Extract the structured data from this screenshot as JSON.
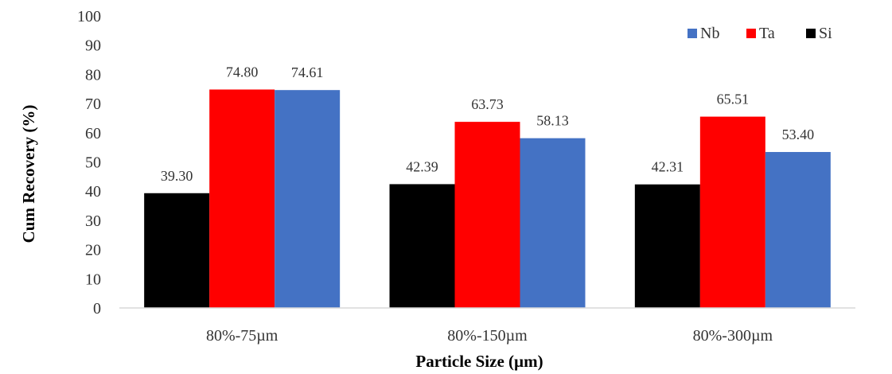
{
  "chart_data": {
    "type": "bar",
    "title": "",
    "xlabel": "Particle Size (µm)",
    "ylabel": "Cum Recovery (%)",
    "ylim": [
      0,
      100
    ],
    "yticks": [
      "0",
      "10",
      "20",
      "30",
      "40",
      "50",
      "60",
      "70",
      "80",
      "90",
      "100"
    ],
    "grid": false,
    "legend_position": "top-right",
    "categories": [
      "80%-75µm",
      "80%-150µm",
      "80%-300µm"
    ],
    "series": [
      {
        "name": "Si",
        "color": "#000000",
        "values": [
          39.3,
          42.39,
          42.31
        ],
        "labels": [
          "39.30",
          "42.39",
          "42.31"
        ]
      },
      {
        "name": "Ta",
        "color": "#ff0000",
        "values": [
          74.8,
          63.73,
          65.51
        ],
        "labels": [
          "74.80",
          "63.73",
          "65.51"
        ]
      },
      {
        "name": "Nb",
        "color": "#4472c4",
        "values": [
          74.61,
          58.13,
          53.4
        ],
        "labels": [
          "74.61",
          "58.13",
          "53.40"
        ]
      }
    ],
    "legend_order": [
      "Nb",
      "Ta",
      "Si"
    ]
  }
}
